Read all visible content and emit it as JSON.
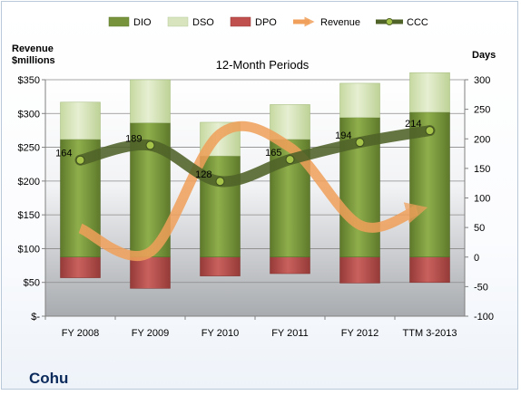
{
  "chart_data": {
    "type": "bar",
    "title": "12-Month Periods",
    "left_axis_label": [
      "Revenue",
      "$millions"
    ],
    "right_axis_label": "Days",
    "company": "Cohu",
    "categories": [
      "FY 2008",
      "FY 2009",
      "FY 2010",
      "FY 2011",
      "FY 2012",
      "TTM 3-2013"
    ],
    "left_ticks": [
      "$350",
      "$300",
      "$250",
      "$200",
      "$150",
      "$100",
      "$50",
      "$-"
    ],
    "right_ticks": [
      "300",
      "250",
      "200",
      "150",
      "100",
      "50",
      "0",
      "-50",
      "-100"
    ],
    "left_axis_range": [
      0,
      350
    ],
    "right_axis_range": [
      -100,
      300
    ],
    "stacked_bars_units": "days",
    "series": [
      {
        "name": "DIO",
        "type": "bar",
        "color": "#77933c",
        "values": [
          199,
          227,
          171,
          199,
          236,
          245
        ]
      },
      {
        "name": "DSO",
        "type": "bar",
        "color": "#d7e4bd",
        "values": [
          63,
          73,
          57,
          59,
          58,
          67
        ]
      },
      {
        "name": "DPO",
        "type": "bar",
        "color": "#c0504d",
        "values": [
          -35,
          -53,
          -32,
          -28,
          -44,
          -43
        ]
      },
      {
        "name": "Revenue",
        "type": "line",
        "axis": "left",
        "color": "#f79646",
        "values": [
          130,
          95,
          270,
          250,
          135,
          157
        ]
      },
      {
        "name": "CCC",
        "type": "line",
        "axis": "right",
        "color": "#4f6228",
        "values": [
          164,
          189,
          128,
          165,
          194,
          214
        ]
      }
    ],
    "data_labels": [
      "164",
      "189",
      "128",
      "165",
      "194",
      "214"
    ],
    "legend_position": "top",
    "grid": true
  }
}
